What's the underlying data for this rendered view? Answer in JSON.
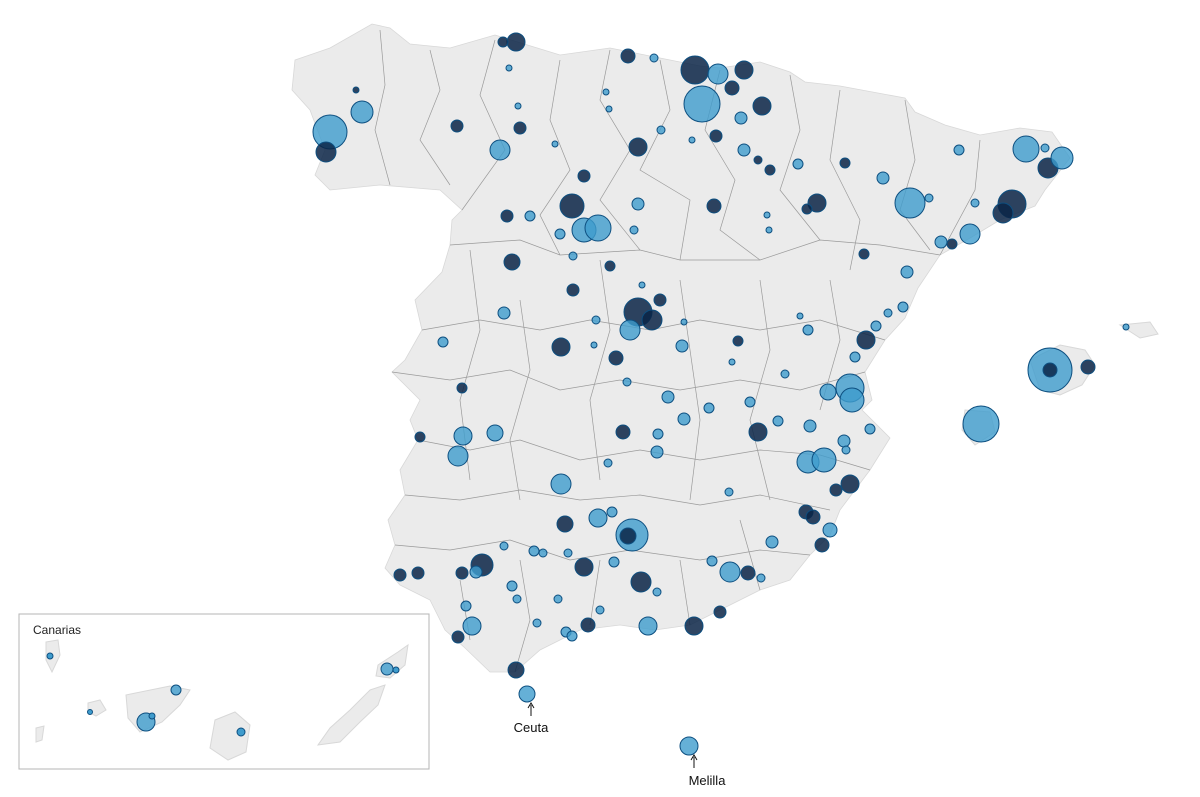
{
  "inset": {
    "title": "Canarias"
  },
  "labels": {
    "ceuta": "Ceuta",
    "melilla": "Melilla"
  },
  "colors": {
    "land": "#ebebeb",
    "border": "#9a9a9a",
    "bubble_light": "#3f9ccd",
    "bubble_dark": "#0b2546",
    "bubble_stroke": "#0d4f80"
  }
}
